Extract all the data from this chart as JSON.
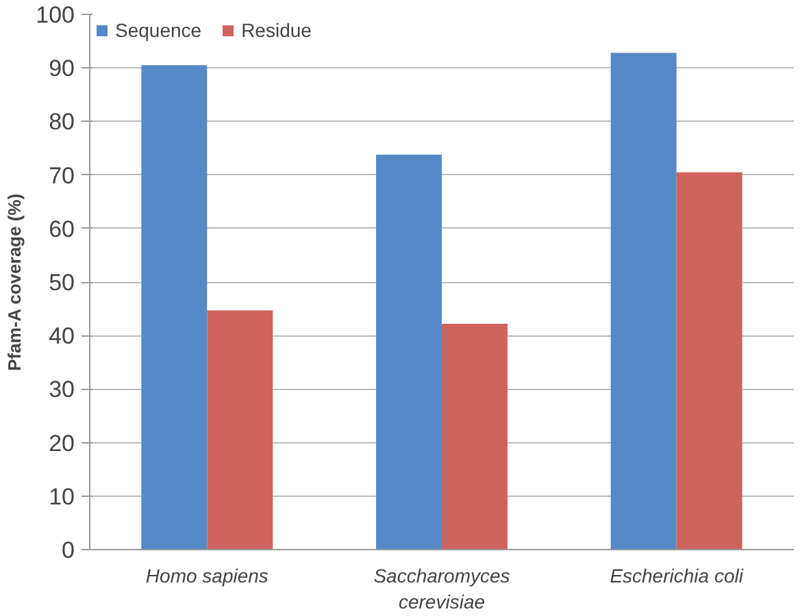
{
  "chart_data": {
    "type": "bar",
    "ylabel": "Pfam-A coverage (%)",
    "categories": [
      "Homo sapiens",
      "Saccharomyces cerevisiae",
      "Escherichia coli"
    ],
    "series": [
      {
        "name": "Sequence",
        "color": "#5589c8",
        "values": [
          90.5,
          73.8,
          92.8
        ]
      },
      {
        "name": "Residue",
        "color": "#cf625c",
        "values": [
          44.7,
          42.2,
          70.5
        ]
      }
    ],
    "ylim": [
      0,
      100
    ],
    "yticks": [
      0,
      10,
      20,
      30,
      40,
      50,
      60,
      70,
      80,
      90,
      100
    ],
    "grid": "y",
    "legend": "top left"
  }
}
